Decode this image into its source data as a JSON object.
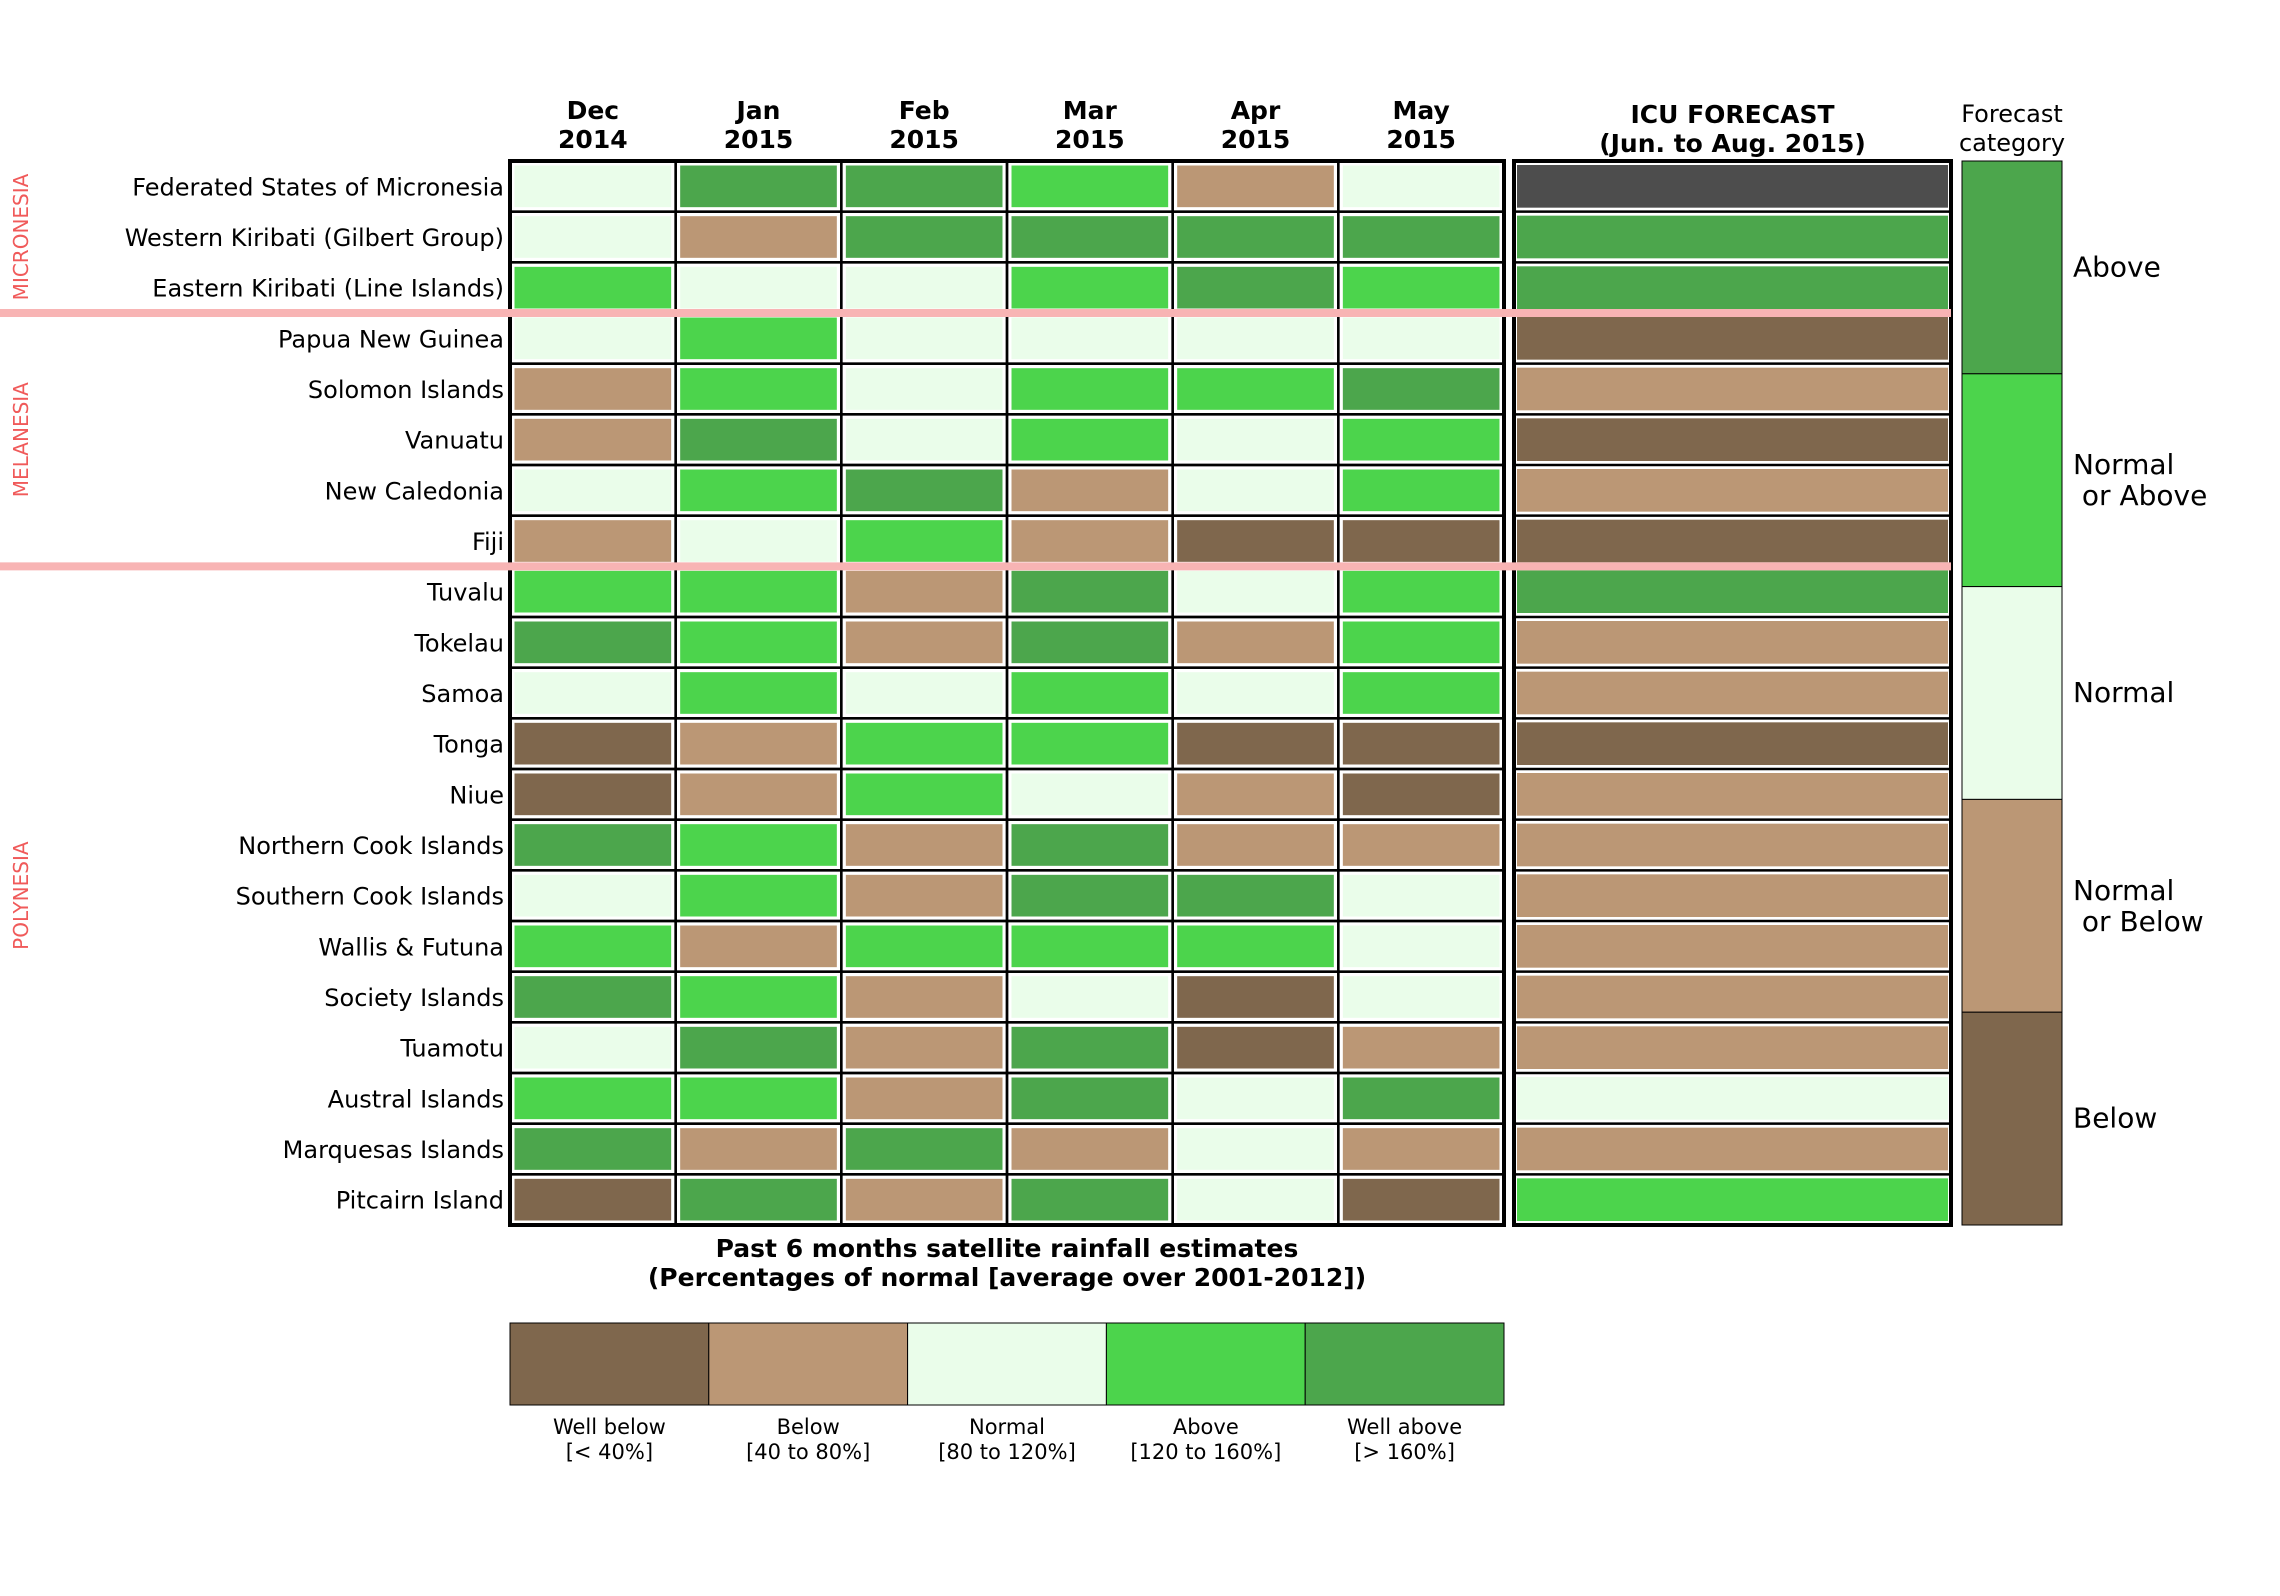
{
  "chart_data": {
    "type": "heatmap",
    "title": "Past 6 months satellite rainfall estimates",
    "subtitle": "(Percentages of normal [average over 2001-2012])",
    "columns": [
      {
        "month": "Dec",
        "year": "2014"
      },
      {
        "month": "Jan",
        "year": "2015"
      },
      {
        "month": "Feb",
        "year": "2015"
      },
      {
        "month": "Mar",
        "year": "2015"
      },
      {
        "month": "Apr",
        "year": "2015"
      },
      {
        "month": "May",
        "year": "2015"
      }
    ],
    "forecast_header": [
      "ICU FORECAST",
      "(Jun. to Aug. 2015)"
    ],
    "forecast_category_title": [
      "Forecast",
      "category"
    ],
    "regions": [
      {
        "name": "MICRONESIA",
        "first_row": 0,
        "last_row": 2
      },
      {
        "name": "MELANESIA",
        "first_row": 3,
        "last_row": 7
      },
      {
        "name": "POLYNESIA",
        "first_row": 8,
        "last_row": 20
      }
    ],
    "category_codes": "0=Well below, 1=Below, 2=Normal, 3=Above, 4=Well above",
    "rows": [
      {
        "name": "Federated States of Micronesia",
        "values": [
          2,
          4,
          4,
          3,
          1,
          2
        ],
        "forecast": "none"
      },
      {
        "name": "Western Kiribati (Gilbert Group)",
        "values": [
          2,
          1,
          4,
          4,
          4,
          4
        ],
        "forecast": "above"
      },
      {
        "name": "Eastern Kiribati (Line Islands)",
        "values": [
          3,
          2,
          2,
          3,
          4,
          3
        ],
        "forecast": "above"
      },
      {
        "name": "Papua New Guinea",
        "values": [
          2,
          3,
          2,
          2,
          2,
          2
        ],
        "forecast": "below"
      },
      {
        "name": "Solomon Islands",
        "values": [
          1,
          3,
          2,
          3,
          3,
          4
        ],
        "forecast": "normal_or_below"
      },
      {
        "name": "Vanuatu",
        "values": [
          1,
          4,
          2,
          3,
          2,
          3
        ],
        "forecast": "below"
      },
      {
        "name": "New Caledonia",
        "values": [
          2,
          3,
          4,
          1,
          2,
          3
        ],
        "forecast": "normal_or_below"
      },
      {
        "name": "Fiji",
        "values": [
          1,
          2,
          3,
          1,
          0,
          0
        ],
        "forecast": "below"
      },
      {
        "name": "Tuvalu",
        "values": [
          3,
          3,
          1,
          4,
          2,
          3
        ],
        "forecast": "above"
      },
      {
        "name": "Tokelau",
        "values": [
          4,
          3,
          1,
          4,
          1,
          3
        ],
        "forecast": "normal_or_below"
      },
      {
        "name": "Samoa",
        "values": [
          2,
          3,
          2,
          3,
          2,
          3
        ],
        "forecast": "normal_or_below"
      },
      {
        "name": "Tonga",
        "values": [
          0,
          1,
          3,
          3,
          0,
          0
        ],
        "forecast": "below"
      },
      {
        "name": "Niue",
        "values": [
          0,
          1,
          3,
          2,
          1,
          0
        ],
        "forecast": "normal_or_below"
      },
      {
        "name": "Northern Cook Islands",
        "values": [
          4,
          3,
          1,
          4,
          1,
          1
        ],
        "forecast": "normal_or_below"
      },
      {
        "name": "Southern Cook Islands",
        "values": [
          2,
          3,
          1,
          4,
          4,
          2
        ],
        "forecast": "normal_or_below"
      },
      {
        "name": "Wallis & Futuna",
        "values": [
          3,
          1,
          3,
          3,
          3,
          2
        ],
        "forecast": "normal_or_below"
      },
      {
        "name": "Society Islands",
        "values": [
          4,
          3,
          1,
          2,
          0,
          2
        ],
        "forecast": "normal_or_below"
      },
      {
        "name": "Tuamotu",
        "values": [
          2,
          4,
          1,
          4,
          0,
          1
        ],
        "forecast": "normal_or_below"
      },
      {
        "name": "Austral Islands",
        "values": [
          3,
          3,
          1,
          4,
          2,
          4
        ],
        "forecast": "normal"
      },
      {
        "name": "Marquesas Islands",
        "values": [
          4,
          1,
          4,
          1,
          2,
          1
        ],
        "forecast": "normal_or_below"
      },
      {
        "name": "Pitcairn Island",
        "values": [
          0,
          4,
          1,
          4,
          2,
          0
        ],
        "forecast": "normal_or_above"
      }
    ],
    "legend": [
      {
        "label": "Well below",
        "range": "[< 40%]",
        "color": "#7f674d"
      },
      {
        "label": "Below",
        "range": "[40 to 80%]",
        "color": "#bb9775"
      },
      {
        "label": "Normal",
        "range": "[80 to 120%]",
        "color": "#eafdea"
      },
      {
        "label": "Above",
        "range": "[120 to 160%]",
        "color": "#4cd44c"
      },
      {
        "label": "Well above",
        "range": "[> 160%]",
        "color": "#4ca64c"
      }
    ],
    "forecast_categories": [
      {
        "key": "above",
        "label": [
          "Above"
        ],
        "color": "#4ca64c"
      },
      {
        "key": "normal_or_above",
        "label": [
          "Normal",
          " or Above"
        ],
        "color": "#4cd44c"
      },
      {
        "key": "normal",
        "label": [
          "Normal"
        ],
        "color": "#eafdea"
      },
      {
        "key": "normal_or_below",
        "label": [
          "Normal",
          " or Below"
        ],
        "color": "#bb9775"
      },
      {
        "key": "below",
        "label": [
          "Below"
        ],
        "color": "#7f674d"
      }
    ],
    "no_forecast_color": "#4d4d4d",
    "region_color": "#f05a5a",
    "separator_color": "#f8b4b4"
  }
}
